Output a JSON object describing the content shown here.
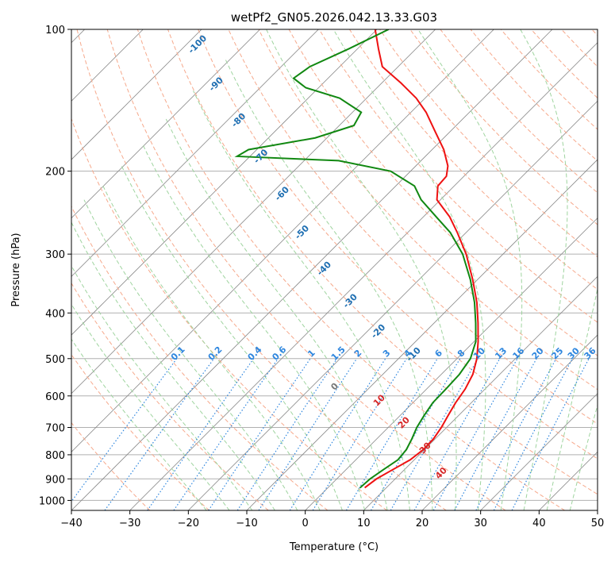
{
  "title": "wetPf2_GN05.2026.042.13.33.G03",
  "colors": {
    "temperature": "#ee1111",
    "dewpoint": "#118811",
    "grid": "#b0b0b0",
    "isotherm": "#888888",
    "dry_adiabat": "#f6a98c",
    "moist_adiabat": "#9fd49f",
    "mixing_ratio": "#2e86de",
    "dry_adiabat_label": "#1f6fb2",
    "moist_adiabat_label": "#d62728",
    "zero_label": "#777777"
  },
  "chart_data": {
    "type": "line",
    "subtype": "skew-t log-p diagram",
    "title": "wetPf2_GN05.2026.042.13.33.G03",
    "xlabel": "Temperature (°C)",
    "ylabel": "Pressure (hPa)",
    "xlim": [
      -40,
      50
    ],
    "ylim": [
      1050,
      100
    ],
    "y_scale": "log",
    "x_ticks": [
      -40,
      -30,
      -20,
      -10,
      0,
      10,
      20,
      30,
      40,
      50
    ],
    "y_ticks": [
      100,
      200,
      300,
      400,
      500,
      600,
      700,
      800,
      900,
      1000
    ],
    "grid": true,
    "series": [
      {
        "key": "temperature",
        "values": [
          {
            "p": 940,
            "t": 6.3
          },
          {
            "p": 900,
            "t": 6.8
          },
          {
            "p": 860,
            "t": 8.0
          },
          {
            "p": 820,
            "t": 9.3
          },
          {
            "p": 780,
            "t": 9.8
          },
          {
            "p": 740,
            "t": 9.7
          },
          {
            "p": 700,
            "t": 9.1
          },
          {
            "p": 660,
            "t": 8.2
          },
          {
            "p": 620,
            "t": 7.3
          },
          {
            "p": 580,
            "t": 6.6
          },
          {
            "p": 540,
            "t": 5.4
          },
          {
            "p": 500,
            "t": 3.4
          },
          {
            "p": 460,
            "t": 0.7
          },
          {
            "p": 420,
            "t": -2.5
          },
          {
            "p": 380,
            "t": -6.2
          },
          {
            "p": 340,
            "t": -10.8
          },
          {
            "p": 300,
            "t": -16.3
          },
          {
            "p": 270,
            "t": -21.5
          },
          {
            "p": 250,
            "t": -25.5
          },
          {
            "p": 230,
            "t": -30.6
          },
          {
            "p": 215,
            "t": -32.8
          },
          {
            "p": 205,
            "t": -33.0
          },
          {
            "p": 195,
            "t": -34.5
          },
          {
            "p": 180,
            "t": -38.0
          },
          {
            "p": 165,
            "t": -42.5
          },
          {
            "p": 150,
            "t": -47.4
          },
          {
            "p": 140,
            "t": -51.5
          },
          {
            "p": 130,
            "t": -56.7
          },
          {
            "p": 120,
            "t": -62.7
          },
          {
            "p": 110,
            "t": -66.4
          },
          {
            "p": 100,
            "t": -70.3
          }
        ]
      },
      {
        "key": "dewpoint",
        "values": [
          {
            "p": 940,
            "t": 5.5
          },
          {
            "p": 900,
            "t": 5.7
          },
          {
            "p": 860,
            "t": 6.4
          },
          {
            "p": 820,
            "t": 7.2
          },
          {
            "p": 780,
            "t": 6.9
          },
          {
            "p": 740,
            "t": 6.0
          },
          {
            "p": 700,
            "t": 4.9
          },
          {
            "p": 660,
            "t": 4.1
          },
          {
            "p": 620,
            "t": 3.4
          },
          {
            "p": 580,
            "t": 3.3
          },
          {
            "p": 540,
            "t": 3.1
          },
          {
            "p": 500,
            "t": 2.3
          },
          {
            "p": 460,
            "t": 0.3
          },
          {
            "p": 420,
            "t": -2.9
          },
          {
            "p": 380,
            "t": -6.6
          },
          {
            "p": 340,
            "t": -11.2
          },
          {
            "p": 300,
            "t": -16.9
          },
          {
            "p": 270,
            "t": -22.7
          },
          {
            "p": 250,
            "t": -27.8
          },
          {
            "p": 230,
            "t": -33.3
          },
          {
            "p": 215,
            "t": -36.8
          },
          {
            "p": 200,
            "t": -43.4
          },
          {
            "p": 190,
            "t": -54.1
          },
          {
            "p": 186,
            "t": -72.2
          },
          {
            "p": 180,
            "t": -71.4
          },
          {
            "p": 170,
            "t": -62.0
          },
          {
            "p": 160,
            "t": -57.5
          },
          {
            "p": 150,
            "t": -58.5
          },
          {
            "p": 140,
            "t": -64.6
          },
          {
            "p": 133,
            "t": -72.2
          },
          {
            "p": 127,
            "t": -75.9
          },
          {
            "p": 120,
            "t": -75.1
          },
          {
            "p": 110,
            "t": -71.5
          },
          {
            "p": 100,
            "t": -68.0
          }
        ]
      }
    ],
    "dry_adiabat_labels": [
      "-100",
      "-90",
      "-80",
      "-70",
      "-60",
      "-50",
      "-40",
      "-30",
      "-20",
      "-10"
    ],
    "moist_adiabat_labels": [
      "0",
      "10",
      "20",
      "30",
      "40"
    ],
    "mixing_ratio_labels": [
      "0.1",
      "0.2",
      "0.4",
      "0.6",
      "1",
      "1.5",
      "2",
      "3",
      "4",
      "6",
      "8",
      "10",
      "13",
      "16",
      "20",
      "25",
      "30",
      "36"
    ]
  }
}
